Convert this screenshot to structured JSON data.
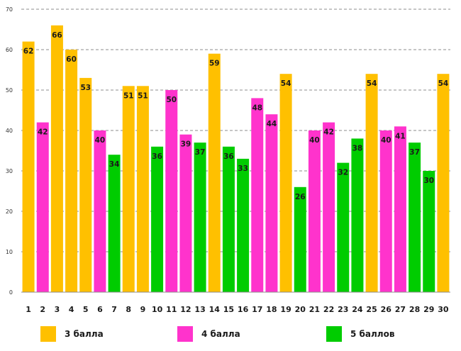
{
  "chart_data": {
    "type": "bar",
    "title": "",
    "xlabel": "",
    "ylabel": "",
    "ylim": [
      0,
      70
    ],
    "yticks": [
      0,
      10,
      20,
      30,
      40,
      50,
      60,
      70
    ],
    "grid": true,
    "legend_position": "bottom",
    "categories": [
      "1",
      "2",
      "3",
      "4",
      "5",
      "6",
      "7",
      "8",
      "9",
      "10",
      "11",
      "12",
      "13",
      "14",
      "15",
      "16",
      "17",
      "18",
      "19",
      "20",
      "21",
      "22",
      "23",
      "24",
      "25",
      "26",
      "27",
      "28",
      "29",
      "30"
    ],
    "values": [
      62,
      42,
      66,
      60,
      53,
      40,
      34,
      51,
      51,
      36,
      50,
      39,
      37,
      59,
      36,
      33,
      48,
      44,
      54,
      26,
      40,
      42,
      32,
      38,
      54,
      40,
      41,
      37,
      30,
      54
    ],
    "value_labels": [
      "62",
      "42",
      "66",
      "60",
      "53",
      "40",
      "34",
      "51",
      "51",
      "36",
      "50",
      "39",
      "37",
      "59",
      "36",
      "33",
      "48",
      "44",
      "54",
      "26",
      "40",
      "42",
      "32",
      "38",
      "54",
      "40",
      "41",
      "37",
      "30",
      "54"
    ],
    "bar_series": [
      0,
      1,
      0,
      0,
      0,
      1,
      2,
      0,
      0,
      2,
      1,
      1,
      2,
      0,
      2,
      2,
      1,
      1,
      0,
      2,
      1,
      1,
      2,
      2,
      0,
      1,
      1,
      2,
      2,
      0
    ],
    "series": [
      {
        "name": "3 балла",
        "color": "#FFC000"
      },
      {
        "name": "4 балла",
        "color": "#FF33CC"
      },
      {
        "name": "5 баллов",
        "color": "#00CC00"
      }
    ]
  }
}
